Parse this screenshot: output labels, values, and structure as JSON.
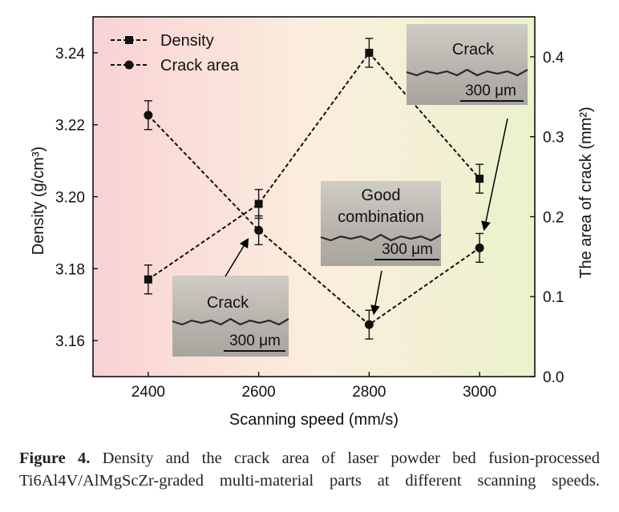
{
  "chart_data": {
    "type": "line",
    "x": [
      2400,
      2600,
      2800,
      3000
    ],
    "xlabel": "Scanning speed (mm/s)",
    "xlim": [
      2300,
      3100
    ],
    "x_ticks": [
      2400,
      2600,
      2800,
      3000
    ],
    "ylabel_left": "Density (g/cm³)",
    "ylim_left": [
      3.15,
      3.25
    ],
    "y_ticks_left": [
      "3.16",
      "3.18",
      "3.20",
      "3.22",
      "3.24"
    ],
    "ylabel_right": "The area of crack (mm²)",
    "ylim_right": [
      0.0,
      0.45
    ],
    "y_ticks_right": [
      "0.0",
      "0.1",
      "0.2",
      "0.3",
      "0.4"
    ],
    "series": [
      {
        "name": "Density",
        "axis": "left",
        "marker": "square",
        "values": [
          3.177,
          3.198,
          3.24,
          3.205
        ],
        "errors": [
          0.004,
          0.004,
          0.004,
          0.004
        ]
      },
      {
        "name": "Crack area",
        "axis": "right",
        "marker": "circle",
        "values": [
          0.327,
          0.183,
          0.065,
          0.161
        ],
        "errors": [
          0.018,
          0.018,
          0.018,
          0.018
        ]
      }
    ],
    "legend_position": "top-left",
    "grid": false,
    "background": "horizontal gradient pink to light green"
  },
  "insets": [
    {
      "label": "Crack",
      "scale": "300 μm",
      "points_to": "x=2600 crack area"
    },
    {
      "label_lines": [
        "Good",
        "combination"
      ],
      "scale": "300 μm",
      "points_to": "x=2800 crack area"
    },
    {
      "label": "Crack",
      "scale": "300 μm",
      "points_to": "x=3000 crack area"
    }
  ],
  "caption": {
    "figure_label": "Figure 4.",
    "text": " Density and the crack area of laser powder bed fusion-processed Ti6Al4V/AlMgScZr-graded multi-material parts at different scanning speeds."
  }
}
